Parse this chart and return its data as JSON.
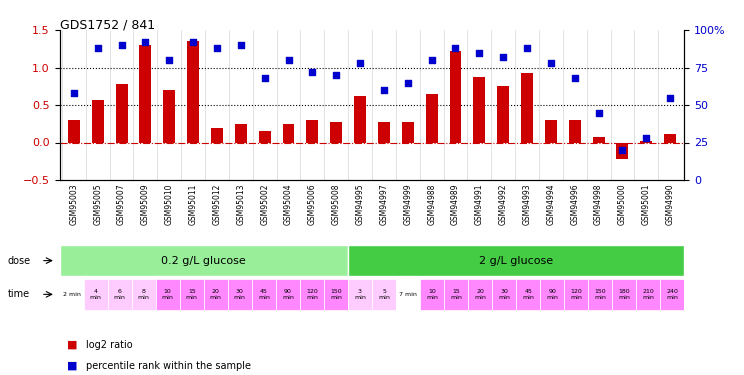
{
  "title": "GDS1752 / 841",
  "sample_ids": [
    "GSM95003",
    "GSM95005",
    "GSM95007",
    "GSM95009",
    "GSM95010",
    "GSM95011",
    "GSM95012",
    "GSM95013",
    "GSM95002",
    "GSM95004",
    "GSM95006",
    "GSM95008",
    "GSM94995",
    "GSM94997",
    "GSM94999",
    "GSM94988",
    "GSM94989",
    "GSM94991",
    "GSM94992",
    "GSM94993",
    "GSM94994",
    "GSM94996",
    "GSM94998",
    "GSM95000",
    "GSM95001",
    "GSM94990"
  ],
  "log2_ratio": [
    0.3,
    0.57,
    0.78,
    1.3,
    0.7,
    1.35,
    0.2,
    0.25,
    0.15,
    0.25,
    0.3,
    0.28,
    0.62,
    0.28,
    0.28,
    0.65,
    1.22,
    0.88,
    0.76,
    0.93,
    0.3,
    0.3,
    0.08,
    -0.22,
    0.02,
    0.12
  ],
  "percentile": [
    58,
    88,
    90,
    92,
    80,
    92,
    88,
    90,
    68,
    80,
    72,
    70,
    78,
    60,
    65,
    80,
    88,
    85,
    82,
    88,
    78,
    68,
    45,
    20,
    28,
    55
  ],
  "time_labels_group1": [
    "2 min",
    "4\nmin",
    "6\nmin",
    "8\nmin",
    "10\nmin",
    "15\nmin",
    "20\nmin",
    "30\nmin",
    "45\nmin",
    "90\nmin",
    "120\nmin",
    "150\nmin"
  ],
  "time_labels_group2": [
    "3\nmin",
    "5\nmin",
    "7 min",
    "10\nmin",
    "15\nmin",
    "20\nmin",
    "30\nmin",
    "45\nmin",
    "90\nmin",
    "120\nmin",
    "150\nmin",
    "180\nmin",
    "210\nmin",
    "240\nmin"
  ],
  "dose_label1": "0.2 g/L glucose",
  "dose_label2": "2 g/L glucose",
  "dose_label_x1": "dose",
  "dose_label_x2": "time",
  "group1_count": 12,
  "group2_count": 14,
  "bar_color": "#cc0000",
  "dot_color": "#0000cc",
  "bg_color": "#ffffff",
  "grid_color": "#aaaaaa",
  "ylim_left": [
    -0.5,
    1.5
  ],
  "ylim_right": [
    0,
    100
  ],
  "yticks_left": [
    -0.5,
    0.0,
    0.5,
    1.0,
    1.5
  ],
  "yticks_right": [
    0,
    25,
    50,
    75,
    100
  ],
  "hline_y": [
    0.5,
    1.0
  ],
  "zero_line_color": "#cc0000",
  "dose_color1": "#99ee99",
  "dose_color2": "#44cc44",
  "time_color1": "#ffaaff",
  "time_color2": "#ee88ee",
  "time_color_small1": "#ffffff"
}
